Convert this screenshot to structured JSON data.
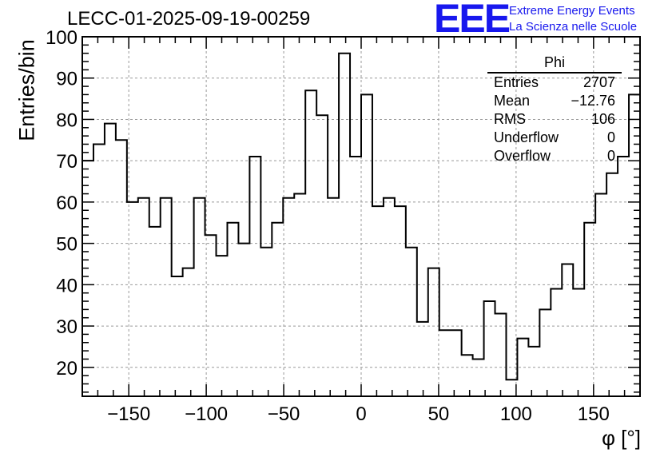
{
  "header": {
    "run_title": "LECC-01-2025-09-19-00259",
    "logo_text": "EEE",
    "logo_line1": "Extreme Energy Events",
    "logo_line2": "La Scienza nelle Scuole",
    "logo_color": "#1818ee"
  },
  "stats_box": {
    "name": "Phi",
    "rows": [
      {
        "label": "Entries",
        "value": "2707"
      },
      {
        "label": "Mean",
        "value": "−12.76"
      },
      {
        "label": "RMS",
        "value": "106"
      },
      {
        "label": "Underflow",
        "value": "0"
      },
      {
        "label": "Overflow",
        "value": "0"
      }
    ]
  },
  "chart_data": {
    "type": "histogram",
    "title": "LECC-01-2025-09-19-00259",
    "xlabel": "φ [°]",
    "ylabel": "Entries/bin",
    "xlim": [
      -180,
      180
    ],
    "ylim": [
      13,
      100
    ],
    "xticks": [
      -150,
      -100,
      -50,
      0,
      50,
      100,
      150
    ],
    "xtick_labels": [
      "−150",
      "−100",
      "−50",
      "0",
      "50",
      "100",
      "150"
    ],
    "yticks": [
      20,
      30,
      40,
      50,
      60,
      70,
      80,
      90,
      100
    ],
    "grid": true,
    "bin_edges_start": -180,
    "bin_width": 7.2,
    "values": [
      70,
      74,
      79,
      75,
      60,
      61,
      54,
      61,
      42,
      44,
      61,
      52,
      47,
      55,
      50,
      71,
      49,
      55,
      61,
      62,
      87,
      81,
      61,
      96,
      71,
      86,
      59,
      61,
      59,
      49,
      31,
      44,
      29,
      29,
      23,
      22,
      36,
      33,
      17,
      27,
      25,
      34,
      39,
      45,
      39,
      55,
      62,
      67,
      71,
      86
    ]
  }
}
